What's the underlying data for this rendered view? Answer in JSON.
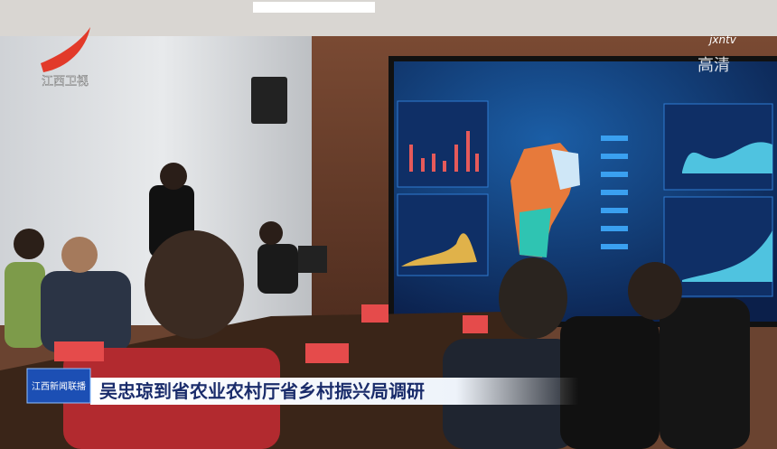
{
  "logo": {
    "text": "江西卫视"
  },
  "watermark": {
    "brand": "jxntv",
    "quality": "高清"
  },
  "caption": {
    "badge": "江西新闻联播",
    "text": "吴忠琼到省农业农村厅省乡村振兴局调研"
  }
}
